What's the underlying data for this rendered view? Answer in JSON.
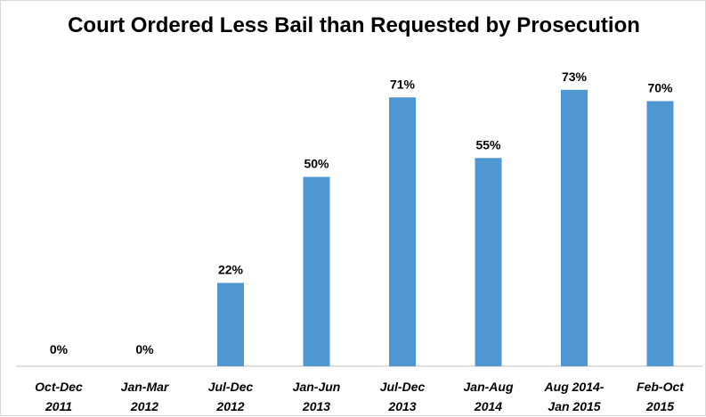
{
  "chart_data": {
    "type": "bar",
    "title": "Court Ordered Less Bail than Requested by Prosecution",
    "xlabel": "",
    "ylabel": "",
    "ylim": [
      0,
      100
    ],
    "grid": false,
    "legend": "none",
    "bar_color": "#4f97d1",
    "categories": [
      [
        "Oct-Dec",
        "2011"
      ],
      [
        "Jan-Mar",
        "2012"
      ],
      [
        "Jul-Dec",
        "2012"
      ],
      [
        "Jan-Jun",
        "2013"
      ],
      [
        "Jul-Dec",
        "2013"
      ],
      [
        "Jan-Aug",
        "2014"
      ],
      [
        "Aug 2014-",
        "Jan 2015"
      ],
      [
        "Feb-Oct",
        "2015"
      ]
    ],
    "values": [
      0,
      0,
      22,
      50,
      71,
      55,
      73,
      70
    ],
    "value_labels": [
      "0%",
      "0%",
      "22%",
      "50%",
      "71%",
      "55%",
      "73%",
      "70%"
    ]
  }
}
